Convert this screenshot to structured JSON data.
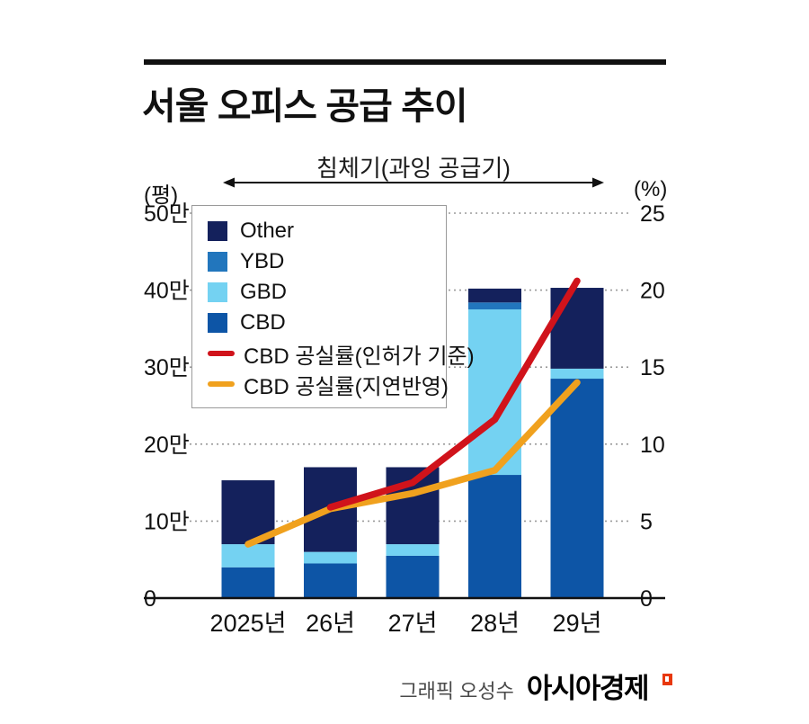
{
  "page": {
    "title": "서울 오피스 공급 추이",
    "annotation": "침체기(과잉 공급기)",
    "footer_credit": "그래픽 오성수",
    "footer_logo": "아시아경제"
  },
  "colors": {
    "axis": "#111111",
    "grid": "#9a9a9a",
    "annotation_arrow": "#111111",
    "logo_mark": "#e8380d"
  },
  "chart_data": {
    "type": "stacked_bar_line",
    "categories": [
      "2025년",
      "26년",
      "27년",
      "28년",
      "29년"
    ],
    "left_axis": {
      "unit": "(평)",
      "max": 50,
      "value_unit": "만평",
      "ticks": [
        {
          "value": 50,
          "label": "50만"
        },
        {
          "value": 40,
          "label": "40만"
        },
        {
          "value": 30,
          "label": "30만"
        },
        {
          "value": 20,
          "label": "20만"
        },
        {
          "value": 10,
          "label": "10만"
        },
        {
          "value": 0,
          "label": "0"
        }
      ]
    },
    "right_axis": {
      "unit": "(%)",
      "max": 25,
      "value_unit": "%",
      "ticks": [
        {
          "value": 25,
          "label": "25"
        },
        {
          "value": 20,
          "label": "20"
        },
        {
          "value": 15,
          "label": "15"
        },
        {
          "value": 10,
          "label": "10"
        },
        {
          "value": 5,
          "label": "5"
        },
        {
          "value": 0,
          "label": "0"
        }
      ]
    },
    "bar_series": [
      {
        "key": "cbd",
        "name": "CBD",
        "color": "#0d55a6",
        "values": [
          4,
          4.5,
          5.5,
          16,
          28.5
        ]
      },
      {
        "key": "gbd",
        "name": "GBD",
        "color": "#74d2f2",
        "values": [
          3,
          1.5,
          1.5,
          21.5,
          1.3
        ]
      },
      {
        "key": "ybd",
        "name": "YBD",
        "color": "#2276bd",
        "values": [
          0,
          0,
          0,
          0.9,
          0
        ]
      },
      {
        "key": "other",
        "name": "Other",
        "color": "#14215c",
        "values": [
          8.3,
          11,
          10,
          1.8,
          10.5
        ]
      }
    ],
    "line_series": [
      {
        "key": "delayed",
        "name": "CBD 공실률(지연반영)",
        "color": "#f0a11e",
        "values": [
          3.5,
          5.8,
          6.8,
          8.3,
          14
        ]
      },
      {
        "key": "permit_basis",
        "name": "CBD 공실률(인허가 기준)",
        "color": "#d0131b",
        "values": [
          null,
          5.9,
          7.5,
          11.6,
          20.6
        ]
      }
    ],
    "legend": [
      {
        "label": "Other",
        "swatch": "square",
        "color": "#14215c"
      },
      {
        "label": "YBD",
        "swatch": "square",
        "color": "#2276bd"
      },
      {
        "label": "GBD",
        "swatch": "square",
        "color": "#74d2f2"
      },
      {
        "label": "CBD",
        "swatch": "square",
        "color": "#0d55a6"
      },
      {
        "label": "CBD 공실률(인허가 기준)",
        "swatch": "line",
        "color": "#d0131b"
      },
      {
        "label": "CBD 공실률(지연반영)",
        "swatch": "line",
        "color": "#f0a11e"
      }
    ]
  }
}
